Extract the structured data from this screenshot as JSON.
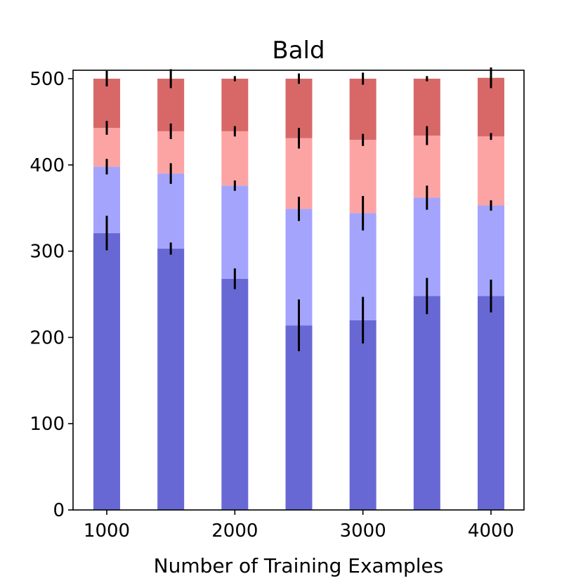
{
  "chart_data": {
    "type": "bar",
    "stacked": true,
    "title": "Bald",
    "xlabel": "Number of Training Examples",
    "ylabel": "",
    "ylim": [
      0,
      500
    ],
    "x": [
      1000,
      1500,
      2000,
      2500,
      3000,
      3500,
      4000
    ],
    "x_ticks": [
      1000,
      2000,
      3000,
      4000
    ],
    "y_ticks": [
      0,
      100,
      200,
      300,
      400,
      500
    ],
    "grid": false,
    "legend": "none",
    "series": [
      {
        "color": "#6868d4",
        "values": [
          321,
          303,
          268,
          214,
          220,
          248,
          248
        ],
        "errors": [
          20,
          7,
          12,
          30,
          27,
          21,
          19
        ]
      },
      {
        "color": "#a4a4fc",
        "values": [
          77,
          87,
          108,
          135,
          124,
          114,
          105
        ],
        "errors": [
          9,
          12,
          6,
          14,
          20,
          14,
          6
        ]
      },
      {
        "color": "#fca4a4",
        "values": [
          45,
          49,
          63,
          82,
          85,
          72,
          80
        ],
        "errors": [
          8,
          9,
          6,
          12,
          7,
          11,
          4
        ]
      },
      {
        "color": "#d86868",
        "values": [
          57,
          61,
          61,
          69,
          71,
          66,
          68
        ],
        "errors": [
          9,
          11,
          3,
          6,
          7,
          3,
          12
        ]
      }
    ]
  }
}
